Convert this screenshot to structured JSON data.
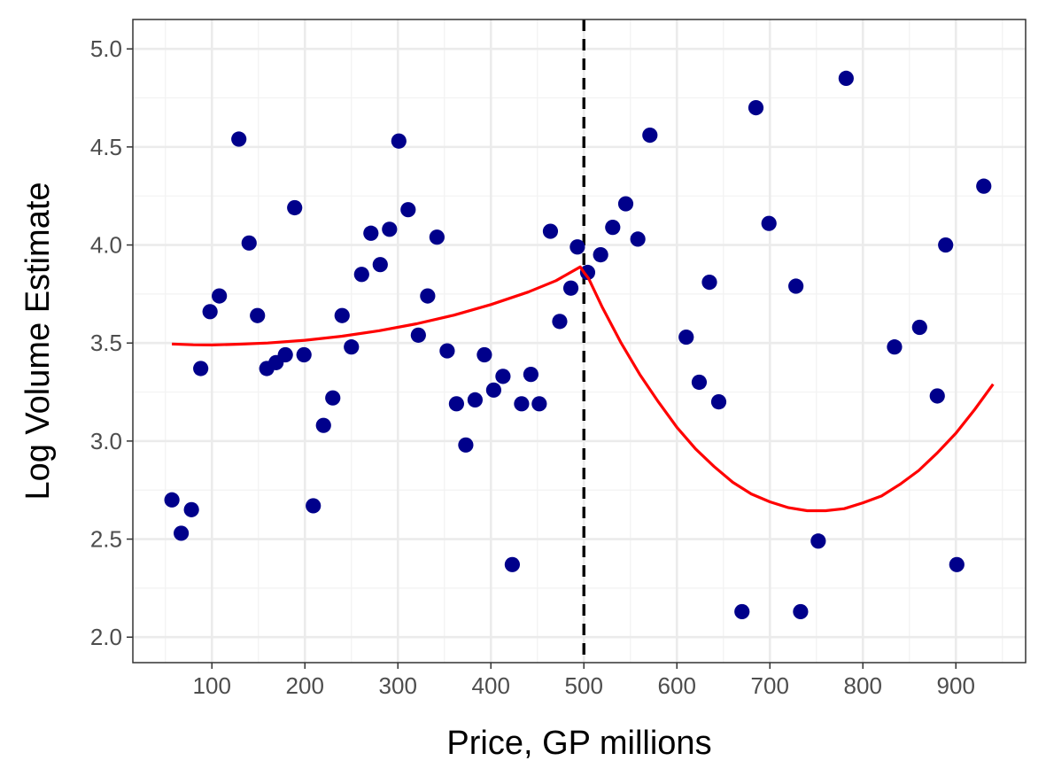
{
  "chart_data": {
    "type": "scatter",
    "xlabel": "Price, GP millions",
    "ylabel": "Log Volume Estimate",
    "xlim": [
      15,
      975
    ],
    "ylim": [
      1.87,
      5.15
    ],
    "x_ticks": [
      100,
      200,
      300,
      400,
      500,
      600,
      700,
      800,
      900
    ],
    "x_tick_labels": [
      "100",
      "200",
      "300",
      "400",
      "500",
      "600",
      "700",
      "800",
      "900"
    ],
    "y_ticks": [
      2.0,
      2.5,
      3.0,
      3.5,
      4.0,
      4.5,
      5.0
    ],
    "y_tick_labels": [
      "2.0",
      "2.5",
      "3.0",
      "3.5",
      "4.0",
      "4.5",
      "5.0"
    ],
    "grid": true,
    "vline": {
      "x": 500,
      "style": "dashed",
      "color": "#000000"
    },
    "points": {
      "color": "#00008B",
      "x": [
        57,
        67,
        78,
        88,
        98,
        108,
        129,
        140,
        149,
        159,
        169,
        179,
        189,
        199,
        209,
        220,
        230,
        240,
        250,
        261,
        271,
        281,
        291,
        301,
        311,
        322,
        332,
        342,
        353,
        363,
        373,
        383,
        393,
        403,
        413,
        423,
        433,
        443,
        452,
        464,
        474,
        486,
        493,
        504,
        518,
        531,
        545,
        558,
        571,
        610,
        624,
        635,
        645,
        670,
        685,
        699,
        728,
        733,
        752,
        782,
        834,
        861,
        880,
        889,
        901,
        930
      ],
      "y": [
        2.7,
        2.53,
        2.65,
        3.37,
        3.66,
        3.74,
        4.54,
        4.01,
        3.64,
        3.37,
        3.4,
        3.44,
        4.19,
        3.44,
        2.67,
        3.08,
        3.22,
        3.64,
        3.48,
        3.85,
        4.06,
        3.9,
        4.08,
        4.53,
        4.18,
        3.54,
        3.74,
        4.04,
        3.46,
        3.19,
        2.98,
        3.21,
        3.44,
        3.26,
        3.33,
        2.37,
        3.19,
        3.34,
        3.19,
        4.07,
        3.61,
        3.78,
        3.99,
        3.86,
        3.95,
        4.09,
        4.21,
        4.03,
        4.56,
        3.53,
        3.3,
        3.81,
        3.2,
        2.13,
        4.7,
        4.11,
        3.79,
        2.13,
        2.49,
        4.85,
        3.48,
        3.58,
        3.23,
        4.0,
        2.37,
        4.3
      ]
    },
    "series": [
      {
        "color": "#FF0000",
        "x": [
          57,
          80,
          100,
          130,
          160,
          200,
          240,
          280,
          320,
          360,
          400,
          440,
          470,
          496,
          500,
          505,
          520,
          540,
          560,
          580,
          600,
          620,
          640,
          660,
          680,
          700,
          720,
          740,
          760,
          780,
          800,
          820,
          840,
          860,
          880,
          900,
          920,
          940
        ],
        "y": [
          3.495,
          3.491,
          3.49,
          3.494,
          3.5,
          3.514,
          3.535,
          3.563,
          3.598,
          3.642,
          3.696,
          3.76,
          3.818,
          3.888,
          3.86,
          3.83,
          3.68,
          3.5,
          3.34,
          3.2,
          3.07,
          2.96,
          2.87,
          2.79,
          2.73,
          2.69,
          2.66,
          2.645,
          2.645,
          2.655,
          2.685,
          2.72,
          2.78,
          2.85,
          2.94,
          3.04,
          3.16,
          3.29
        ]
      }
    ]
  }
}
